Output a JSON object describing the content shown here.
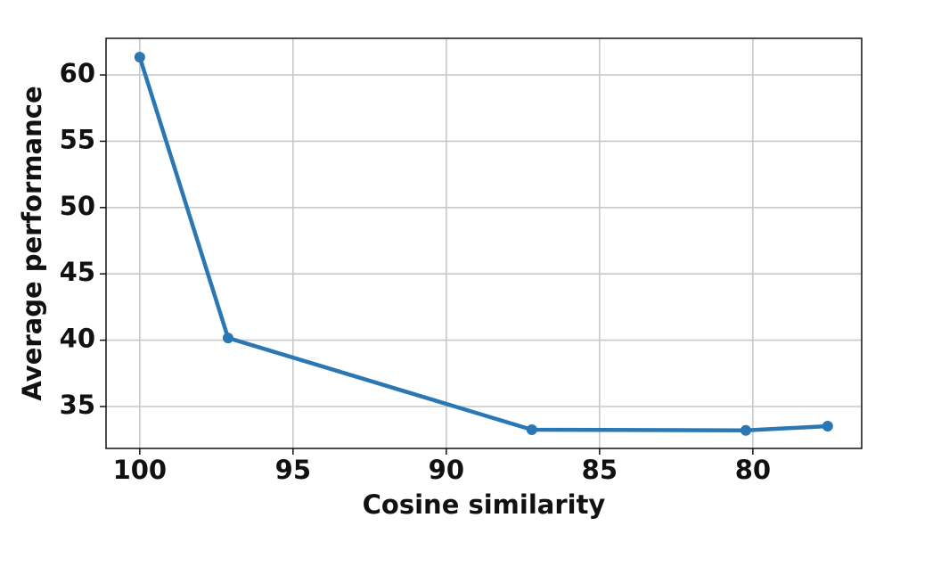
{
  "chart_data": {
    "type": "line",
    "x_label": "Cosine similarity",
    "y_label": "Average performance",
    "x": [
      100,
      97.12,
      87.21,
      80.23,
      77.56
    ],
    "values": [
      61.34,
      40.17,
      33.25,
      33.2,
      33.52
    ],
    "color": "#2a77b4",
    "xlim": [
      101.1,
      76.45
    ],
    "xticks": [
      100,
      95,
      90,
      85,
      80
    ],
    "ylim": [
      31.84,
      62.76
    ],
    "yticks": [
      35,
      40,
      45,
      50,
      55,
      60
    ],
    "grid": true
  }
}
